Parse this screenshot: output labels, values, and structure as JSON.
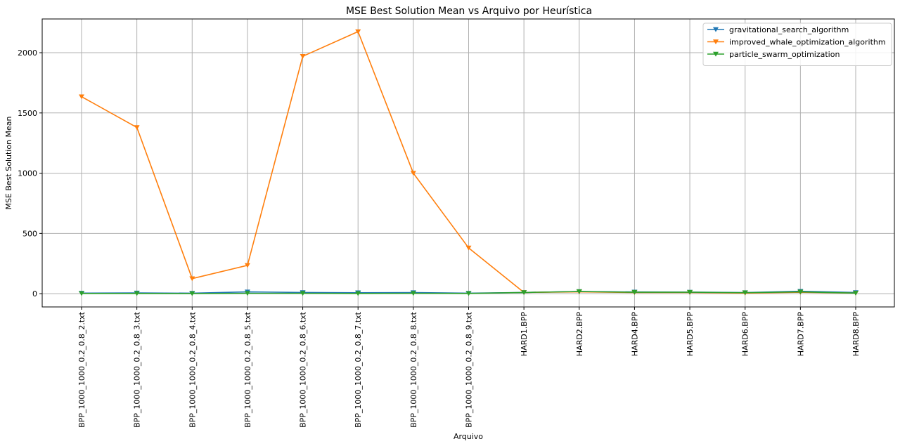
{
  "chart_data": {
    "type": "line",
    "title": "MSE Best Solution Mean vs Arquivo por Heurística",
    "xlabel": "Arquivo",
    "ylabel": "MSE Best Solution Mean",
    "categories": [
      "BPP_1000_1000_0.2_0.8_2.txt",
      "BPP_1000_1000_0.2_0.8_3.txt",
      "BPP_1000_1000_0.2_0.8_4.txt",
      "BPP_1000_1000_0.2_0.8_5.txt",
      "BPP_1000_1000_0.2_0.8_6.txt",
      "BPP_1000_1000_0.2_0.8_7.txt",
      "BPP_1000_1000_0.2_0.8_8.txt",
      "BPP_1000_1000_0.2_0.8_9.txt",
      "HARD1.BPP",
      "HARD2.BPP",
      "HARD4.BPP",
      "HARD5.BPP",
      "HARD6.BPP",
      "HARD7.BPP",
      "HARD8.BPP"
    ],
    "yticks": [
      0,
      500,
      1000,
      1500,
      2000
    ],
    "ylim": [
      -110,
      2280
    ],
    "grid": true,
    "legend_position": "top-right",
    "series": [
      {
        "name": "gravitational_search_algorithm",
        "color": "#1f77b4",
        "values": [
          5,
          6,
          4,
          15,
          10,
          8,
          9,
          4,
          10,
          18,
          14,
          13,
          9,
          20,
          10
        ]
      },
      {
        "name": "improved_whale_optimization_algorithm",
        "color": "#ff7f0e",
        "values": [
          1635,
          1380,
          125,
          235,
          1970,
          2175,
          1000,
          380,
          10,
          15,
          10,
          10,
          5,
          12,
          5
        ]
      },
      {
        "name": "particle_swarm_optimization",
        "color": "#2ca02c",
        "values": [
          2,
          2,
          1,
          3,
          3,
          2,
          3,
          2,
          10,
          18,
          12,
          12,
          8,
          15,
          5
        ]
      }
    ]
  }
}
